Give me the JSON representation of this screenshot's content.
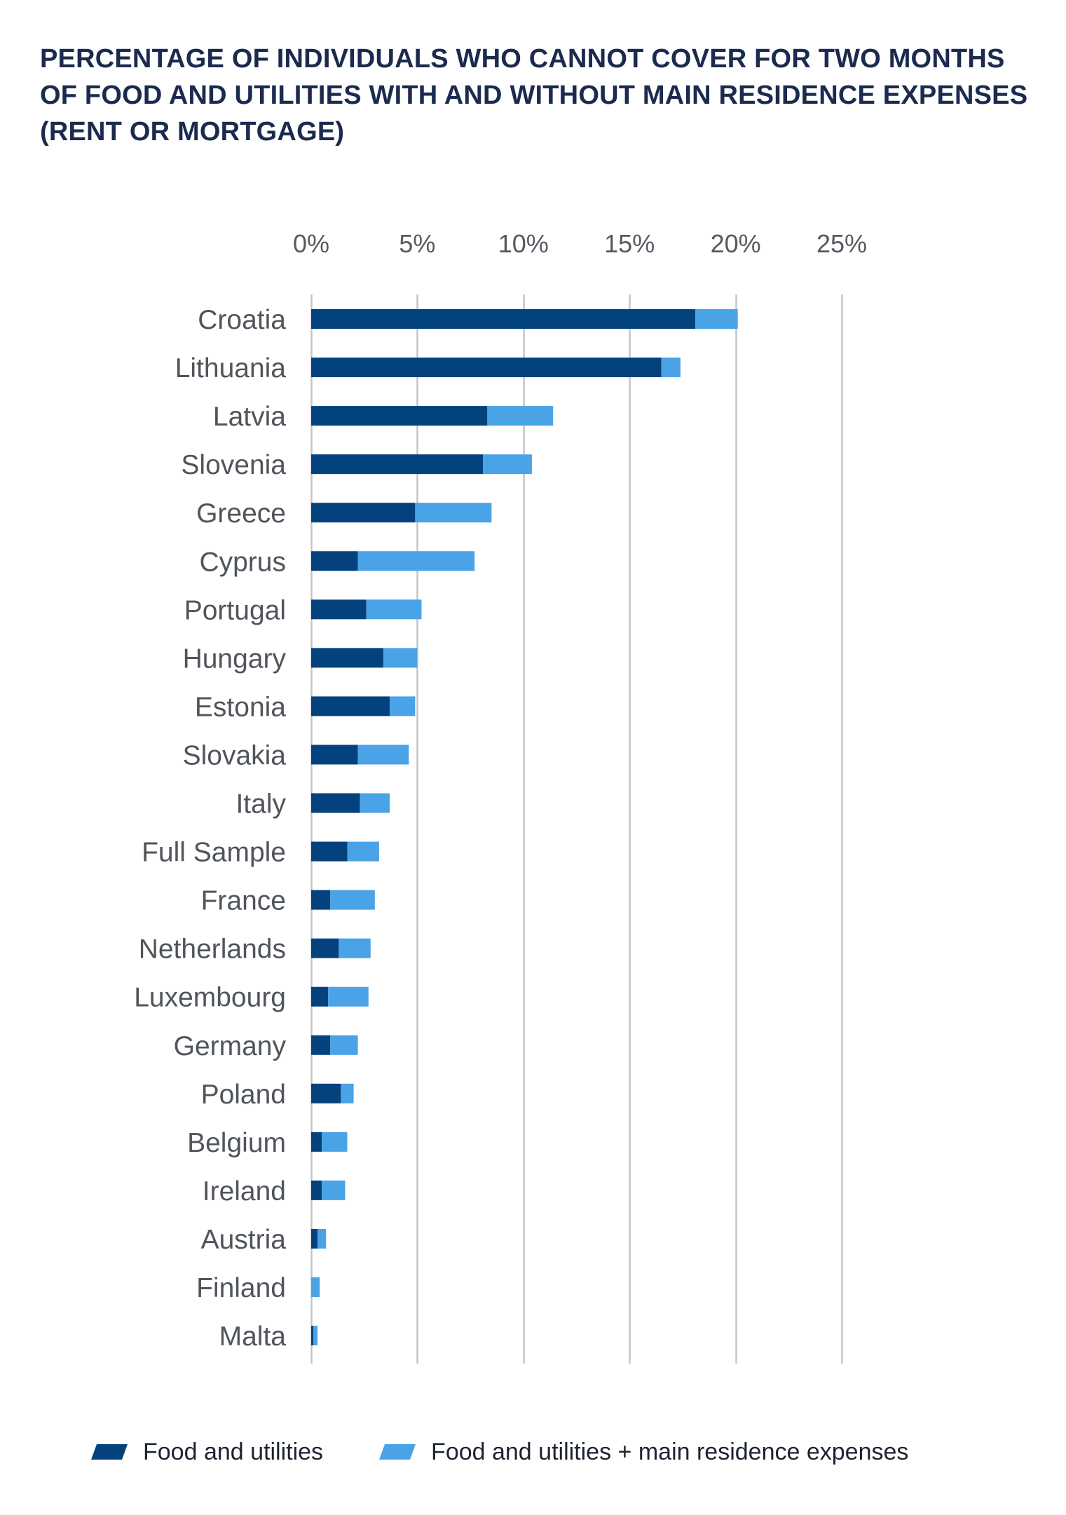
{
  "chart_data": {
    "type": "bar",
    "orientation": "horizontal",
    "stacked": true,
    "title_lines": [
      "PERCENTAGE OF INDIVIDUALS WHO CANNOT COVER FOR TWO MONTHS",
      "OF FOOD AND UTILITIES WITH AND WITHOUT MAIN RESIDENCE EXPENSES",
      "(RENT OR MORTGAGE)"
    ],
    "categories": [
      "Croatia",
      "Lithuania",
      "Latvia",
      "Slovenia",
      "Greece",
      "Cyprus",
      "Portugal",
      "Hungary",
      "Estonia",
      "Slovakia",
      "Italy",
      "Full Sample",
      "France",
      "Netherlands",
      "Luxembourg",
      "Germany",
      "Poland",
      "Belgium",
      "Ireland",
      "Austria",
      "Finland",
      "Malta"
    ],
    "series": [
      {
        "name": "Food and utilities",
        "color": "#04427e",
        "values": [
          18.1,
          16.5,
          8.3,
          8.1,
          4.9,
          2.2,
          2.6,
          3.4,
          3.7,
          2.2,
          2.3,
          1.7,
          0.9,
          1.3,
          0.8,
          0.9,
          1.4,
          0.5,
          0.5,
          0.3,
          0.0,
          0.1
        ]
      },
      {
        "name": "Food and utilities + main residence expenses",
        "color": "#4aa3e6",
        "values": [
          2.0,
          0.9,
          3.1,
          2.3,
          3.6,
          5.5,
          2.6,
          1.6,
          1.2,
          2.4,
          1.4,
          1.5,
          2.1,
          1.5,
          1.9,
          1.3,
          0.6,
          1.2,
          1.1,
          0.4,
          0.4,
          0.2
        ]
      }
    ],
    "xlim": [
      0,
      25
    ],
    "xticks": [
      0,
      5,
      10,
      15,
      20,
      25
    ],
    "xtick_labels": [
      "0%",
      "5%",
      "10%",
      "15%",
      "20%",
      "25%"
    ],
    "xaxis_position": "top",
    "grid": true,
    "legend_position": "bottom"
  }
}
